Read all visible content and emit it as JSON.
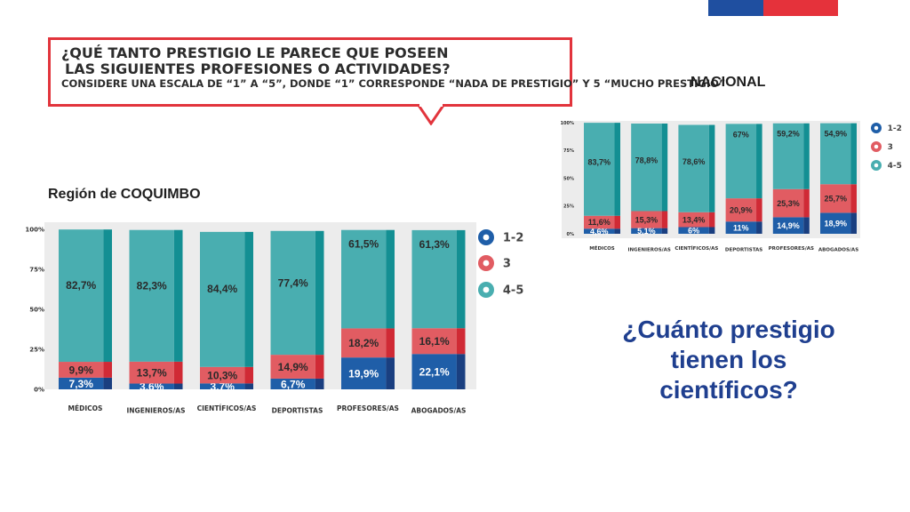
{
  "header": {
    "question_line1": "¿QUÉ TANTO PRESTIGIO LE PARECE QUE POSEEN",
    "question_line2": "LAS SIGUIENTES PROFESIONES O ACTIVIDADES?",
    "question_line3": "CONSIDERE UNA ESCALA DE “1” A “5”, DONDE “1” CORRESPONDE “NADA DE PRESTIGIO” Y 5 “MUCHO PRESTIGIO”"
  },
  "region_label": "Región de COQUIMBO",
  "nacional_label": "NACIONAL",
  "question_bottom": "¿Cuánto prestigio tienen los científicos?",
  "colors": {
    "s12": "#1f5ea8",
    "s3": "#e15c62",
    "s45": "#49aeb0",
    "flag_blue": "#1f4fa0",
    "flag_red": "#e5323b"
  },
  "chart_data": [
    {
      "type": "bar",
      "stacked": true,
      "title": "",
      "categories": [
        "MÉDICOS",
        "INGENIEROS/AS",
        "CIENTÍFICOS/AS",
        "DEPORTISTAS",
        "PROFESORES/AS",
        "ABOGADOS/AS"
      ],
      "series": [
        {
          "name": "1-2",
          "values": [
            7.3,
            3.6,
            3.7,
            6.7,
            19.9,
            22.1
          ],
          "labels": [
            "7,3%",
            "3,6%",
            "3,7%",
            "6,7%",
            "19,9%",
            "22,1%"
          ]
        },
        {
          "name": "3",
          "values": [
            9.9,
            13.7,
            10.3,
            14.9,
            18.2,
            16.1
          ],
          "labels": [
            "9,9%",
            "13,7%",
            "10,3%",
            "14,9%",
            "18,2%",
            "16,1%"
          ]
        },
        {
          "name": "4-5",
          "values": [
            82.7,
            82.3,
            84.4,
            77.4,
            61.5,
            61.3
          ],
          "labels": [
            "82,7%",
            "82,3%",
            "84,4%",
            "77,4%",
            "61,5%",
            "61,3%"
          ]
        }
      ],
      "yticks": [
        "0%",
        "25%",
        "50%",
        "75%",
        "100%"
      ],
      "ylim": [
        0,
        100
      ],
      "legend": [
        "1-2",
        "3",
        "4-5"
      ],
      "legend_position": "right"
    },
    {
      "type": "bar",
      "stacked": true,
      "title": "",
      "categories": [
        "MÉDICOS",
        "INGENIEROS/AS",
        "CIENTÍFICOS/AS",
        "DEPORTISTAS",
        "PROFESORES/AS",
        "ABOGADOS/AS"
      ],
      "series": [
        {
          "name": "1-2",
          "values": [
            4.6,
            5.1,
            6,
            11,
            14.9,
            18.9
          ],
          "labels": [
            "4,6%",
            "5,1%",
            "6%",
            "11%",
            "14,9%",
            "18,9%"
          ]
        },
        {
          "name": "3",
          "values": [
            11.6,
            15.3,
            13.4,
            20.9,
            25.3,
            25.7
          ],
          "labels": [
            "11,6%",
            "15,3%",
            "13,4%",
            "20,9%",
            "25,3%",
            "25,7%"
          ]
        },
        {
          "name": "4-5",
          "values": [
            83.7,
            78.8,
            78.6,
            67,
            59.2,
            54.9
          ],
          "labels": [
            "83,7%",
            "78,8%",
            "78,6%",
            "67%",
            "59,2%",
            "54,9%"
          ]
        }
      ],
      "yticks": [
        "0%",
        "25%",
        "50%",
        "75%",
        "100%"
      ],
      "ylim": [
        0,
        100
      ],
      "legend": [
        "1-2",
        "3",
        "4-5"
      ],
      "legend_position": "right"
    }
  ]
}
